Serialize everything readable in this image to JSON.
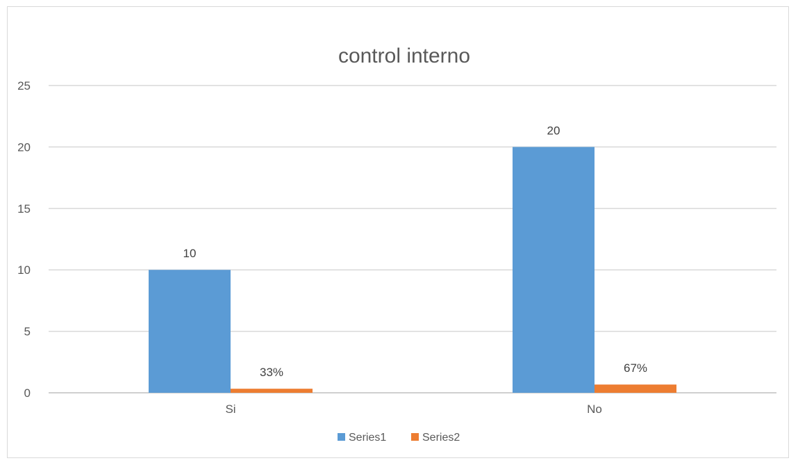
{
  "chart_data": {
    "type": "bar",
    "title": "control interno",
    "xlabel": "",
    "ylabel": "",
    "categories": [
      "Si",
      "No"
    ],
    "ylim": [
      0,
      25
    ],
    "yticks": [
      "0",
      "5",
      "10",
      "15",
      "20",
      "25"
    ],
    "grid": true,
    "legend_position": "bottom",
    "series": [
      {
        "name": "Series1",
        "color": "#5b9bd5",
        "values": [
          10,
          20
        ],
        "labels": [
          "10",
          "20"
        ]
      },
      {
        "name": "Series2",
        "color": "#ed7d31",
        "values": [
          0.33,
          0.67
        ],
        "labels": [
          "33%",
          "67%"
        ]
      }
    ]
  }
}
